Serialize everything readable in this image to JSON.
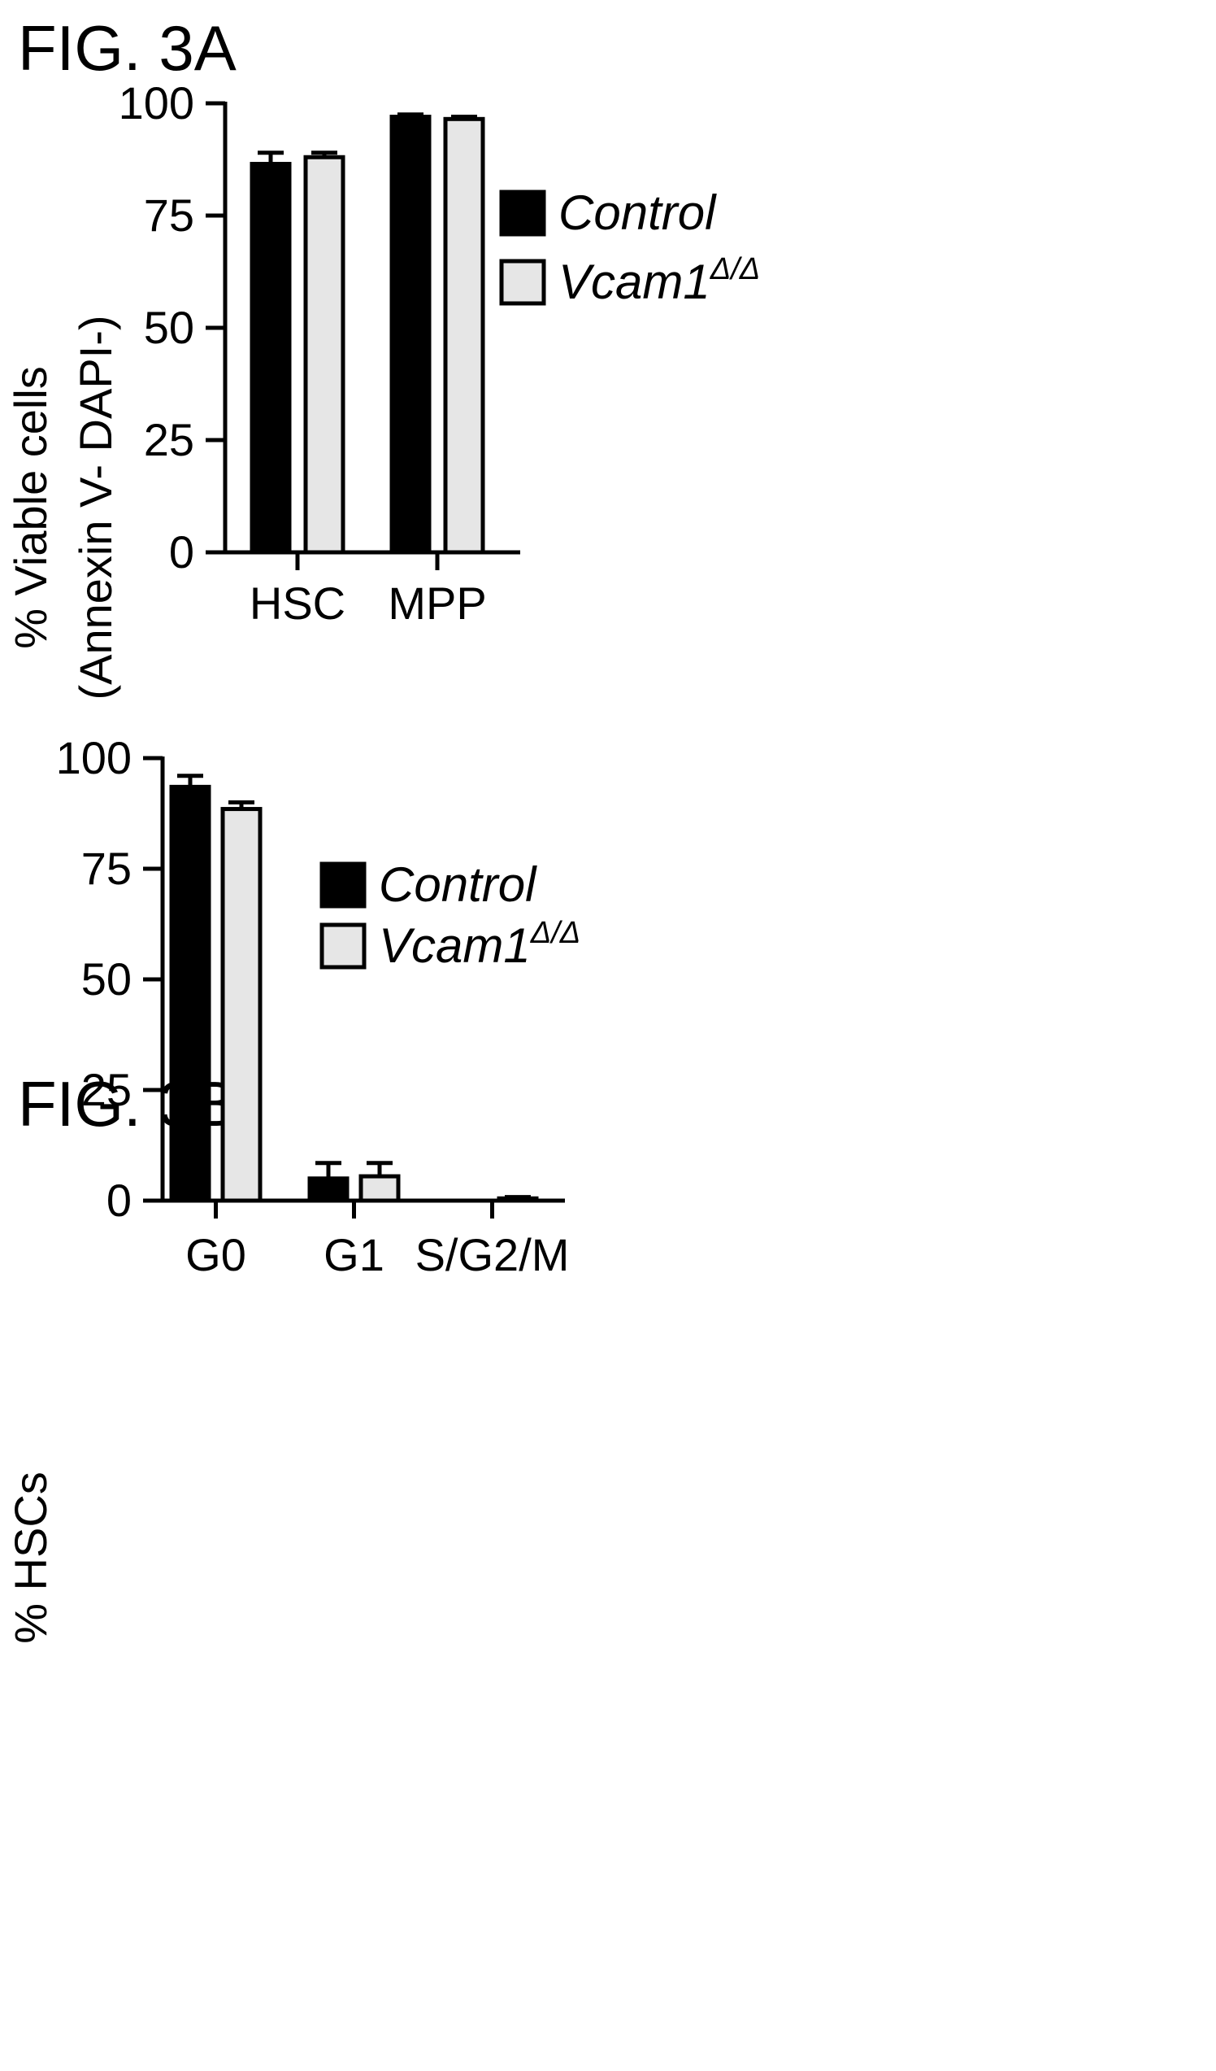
{
  "figures": [
    {
      "title": "FIG. 3A",
      "ylabel_line1": "% Viable cells",
      "ylabel_line2": "(Annexin V- DAPI-)"
    },
    {
      "title": "FIG. 3B",
      "ylabel_line1": "% HSCs",
      "ylabel_line2": ""
    }
  ],
  "colors": {
    "control": "#000000",
    "vcam1": "#e6e6e6",
    "axis": "#000000"
  },
  "chart_data": [
    {
      "type": "bar",
      "title": "",
      "xlabel": "",
      "ylabel": "% Viable cells (Annexin V- DAPI-)",
      "categories": [
        "HSC",
        "MPP"
      ],
      "ylim": [
        0,
        100
      ],
      "yticks": [
        "0",
        "25",
        "50",
        "75",
        "100"
      ],
      "legend_position": "right",
      "series": [
        {
          "name": "Control",
          "values": [
            86.5,
            97
          ],
          "errors": [
            2.5,
            0.5
          ],
          "color": "#000000"
        },
        {
          "name": "Vcam1",
          "name_superscript": "Δ/Δ",
          "values": [
            88,
            96.5
          ],
          "errors": [
            1,
            0.5
          ],
          "color": "#e6e6e6"
        }
      ]
    },
    {
      "type": "bar",
      "title": "",
      "xlabel": "",
      "ylabel": "% HSCs",
      "categories": [
        "G0",
        "G1",
        "S/G2/M"
      ],
      "ylim": [
        0,
        100
      ],
      "yticks": [
        "0",
        "25",
        "50",
        "75",
        "100"
      ],
      "legend_position": "center-right",
      "series": [
        {
          "name": "Control",
          "values": [
            93.5,
            5,
            0
          ],
          "errors": [
            2.5,
            3.5,
            0
          ],
          "color": "#000000"
        },
        {
          "name": "Vcam1",
          "name_superscript": "Δ/Δ",
          "values": [
            88.5,
            5.5,
            0.5
          ],
          "errors": [
            1.5,
            3,
            0.3
          ],
          "color": "#e6e6e6"
        }
      ]
    }
  ]
}
